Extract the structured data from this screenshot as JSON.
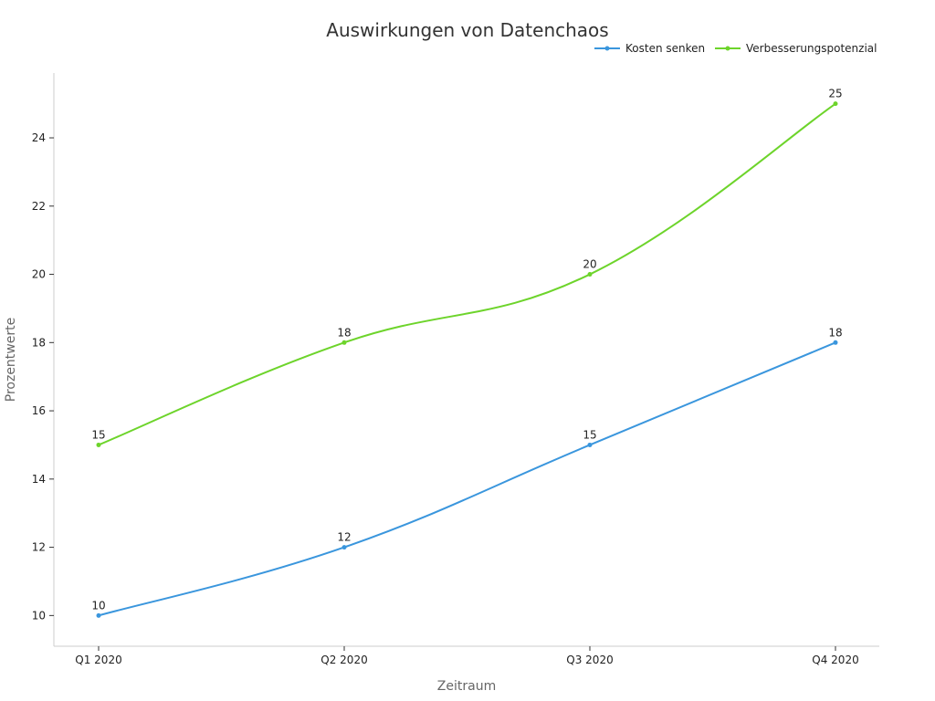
{
  "chart_data": {
    "type": "line",
    "title": "Auswirkungen von Datenchaos",
    "xlabel": "Zeitraum",
    "ylabel": "Prozentwerte",
    "categories": [
      "Q1 2020",
      "Q2 2020",
      "Q3 2020",
      "Q4 2020"
    ],
    "ylim": [
      9.1,
      25.9
    ],
    "yticks": [
      10,
      12,
      14,
      16,
      18,
      20,
      22,
      24
    ],
    "grid": false,
    "legend_position": "top-right",
    "smooth": true,
    "series": [
      {
        "name": "Kosten senken",
        "values": [
          10,
          12,
          15,
          18
        ],
        "color": "#3a96dd"
      },
      {
        "name": "Verbesserungspotenzial",
        "values": [
          15,
          18,
          20,
          25
        ],
        "color": "#6dd42b"
      }
    ]
  }
}
